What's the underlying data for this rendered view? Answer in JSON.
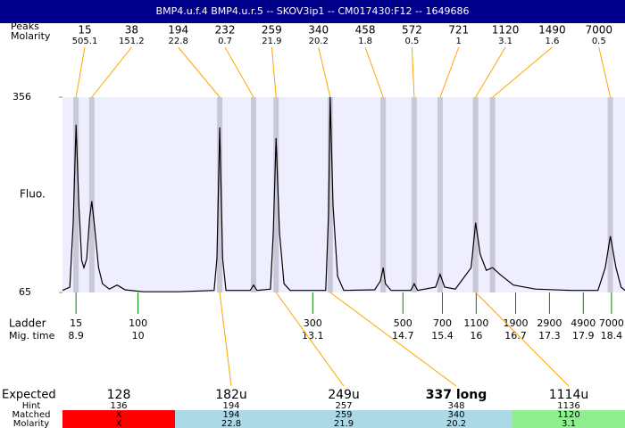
{
  "chart_data": {
    "type": "electropherogram",
    "title": "BMP4.u.f.4  BMP4.u.r.5 -- SKOV3ip1 -- CM017430:F12 -- 1649686",
    "peaks_label": "Peaks",
    "molarity_label": "Molarity",
    "y_label": "Fluo.",
    "ylim": [
      65,
      356
    ],
    "yticks": [
      65,
      356
    ],
    "xlim": [
      8.66,
      18.64
    ],
    "plot_color": "#eeeeff",
    "band_color": "#c8c8d8",
    "link_color": "#ffa500",
    "ladder_color": "#008000",
    "peaks": {
      "bp": [
        15,
        38,
        194,
        232,
        259,
        340,
        458,
        572,
        721,
        1120,
        1490,
        7000
      ],
      "molarity": [
        505.1,
        151.2,
        22.8,
        0.7,
        21.9,
        20.2,
        1.8,
        0.5,
        1,
        3.1,
        1.6,
        0.5
      ],
      "x": [
        8.9,
        9.18,
        11.45,
        12.05,
        12.45,
        13.41,
        14.35,
        14.9,
        15.36,
        15.99,
        16.29,
        18.38
      ]
    },
    "trace": {
      "color": "#000000",
      "x": [
        8.66,
        8.79,
        8.85,
        8.9,
        8.95,
        9.0,
        9.04,
        9.09,
        9.14,
        9.18,
        9.23,
        9.3,
        9.37,
        9.49,
        9.63,
        9.77,
        10.09,
        10.72,
        11.35,
        11.4,
        11.45,
        11.5,
        11.56,
        11.99,
        12.05,
        12.11,
        12.35,
        12.4,
        12.45,
        12.51,
        12.59,
        12.7,
        13.33,
        13.38,
        13.41,
        13.46,
        13.54,
        13.65,
        14.2,
        14.3,
        14.35,
        14.39,
        14.49,
        14.84,
        14.9,
        14.96,
        15.28,
        15.36,
        15.44,
        15.63,
        15.91,
        15.99,
        16.07,
        16.18,
        16.29,
        16.42,
        16.66,
        17.05,
        17.69,
        18.16,
        18.29,
        18.38,
        18.48,
        18.57,
        18.64
      ],
      "values": [
        68,
        73,
        169,
        315,
        196,
        113,
        102,
        115,
        175,
        201,
        162,
        102,
        78,
        70,
        76,
        69,
        66,
        66,
        68,
        116,
        311,
        116,
        68,
        68,
        76,
        68,
        70,
        155,
        295,
        155,
        78,
        68,
        68,
        182,
        356,
        195,
        89,
        68,
        69,
        82,
        102,
        78,
        68,
        68,
        78,
        68,
        73,
        92,
        73,
        70,
        102,
        169,
        122,
        98,
        102,
        92,
        76,
        70,
        68,
        68,
        102,
        149,
        102,
        73,
        68
      ]
    },
    "ladder_label": "Ladder",
    "mig_time_label": "Mig. time",
    "ladder": {
      "bp": [
        15,
        100,
        300,
        500,
        700,
        1100,
        1900,
        2900,
        4900,
        7000
      ],
      "x": [
        8.9,
        10,
        13.1,
        14.7,
        15.4,
        16,
        16.7,
        17.3,
        17.9,
        18.4
      ]
    },
    "expected_label": "Expected",
    "hint_label": "Hint",
    "matched_label": "Matched",
    "row_molarity_label": "Molarity",
    "expected": [
      {
        "expected": "128",
        "hint": 136,
        "matched": "X",
        "molarity": "X",
        "color": "#ff0000",
        "bold": false
      },
      {
        "expected": "182u",
        "hint": 194,
        "matched": 194,
        "molarity": 22.8,
        "color": "#add8e6",
        "bold": false
      },
      {
        "expected": "249u",
        "hint": 257,
        "matched": 259,
        "molarity": 21.9,
        "color": "#add8e6",
        "bold": false
      },
      {
        "expected": "337 long",
        "hint": 348,
        "matched": 340,
        "molarity": 20.2,
        "color": "#add8e6",
        "bold": true
      },
      {
        "expected": "1114u",
        "hint": 1136,
        "matched": 1120,
        "molarity": 3.1,
        "color": "#90ee90",
        "bold": false
      }
    ]
  }
}
